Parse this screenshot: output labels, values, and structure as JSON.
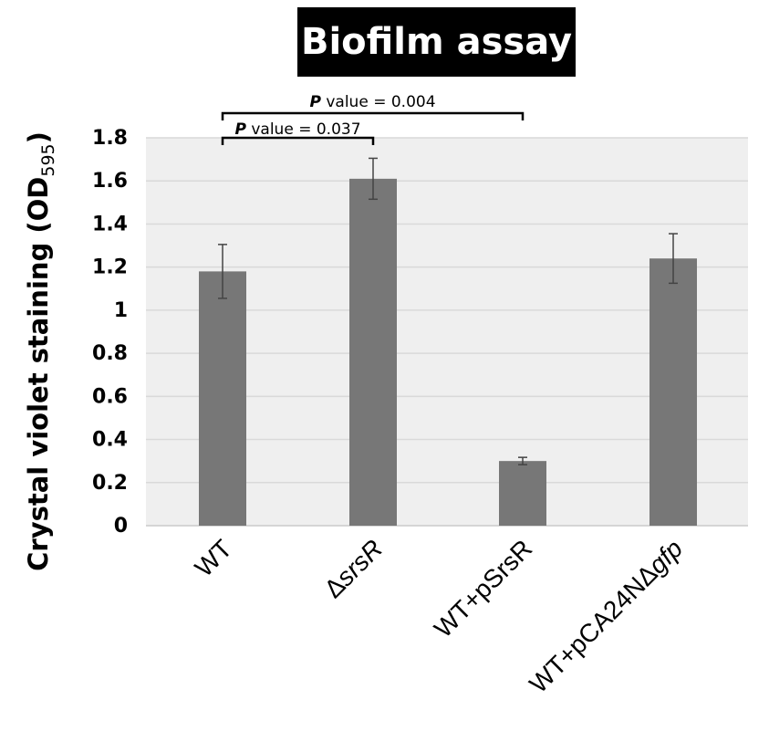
{
  "chart_data": {
    "type": "bar",
    "title": "Biofilm assay",
    "ylabel": "Crystal violet staining (OD",
    "ylabel_subscript": "595",
    "ylabel_suffix": ")",
    "ylim": [
      0,
      1.8
    ],
    "yticks": [
      "0",
      "0.2",
      "0.4",
      "0.6",
      "0.8",
      "1",
      "1.2",
      "1.4",
      "1.6",
      "1.8"
    ],
    "grid": true,
    "categories": [
      {
        "parts": [
          {
            "text": "WT",
            "italic": false
          }
        ]
      },
      {
        "parts": [
          {
            "text": "Δ",
            "italic": false
          },
          {
            "text": "srsR",
            "italic": true
          }
        ]
      },
      {
        "parts": [
          {
            "text": "WT+pSrsR",
            "italic": false
          }
        ]
      },
      {
        "parts": [
          {
            "text": "WT+pCA24NΔ",
            "italic": false
          },
          {
            "text": "gfp",
            "italic": true
          }
        ]
      }
    ],
    "values": [
      1.18,
      1.61,
      0.3,
      1.24
    ],
    "errors": [
      0.125,
      0.095,
      0.017,
      0.115
    ],
    "annotations": [
      {
        "from": 0,
        "to": 1,
        "label_italic": "P",
        "label": " value = 0.037"
      },
      {
        "from": 0,
        "to": 2,
        "label_italic": "P",
        "label": " value = 0.004"
      }
    ],
    "colors": {
      "bar": "#777777",
      "plot_bg": "#efefef",
      "grid": "#d9d9d9",
      "error": "#444444",
      "text": "#000000"
    }
  }
}
